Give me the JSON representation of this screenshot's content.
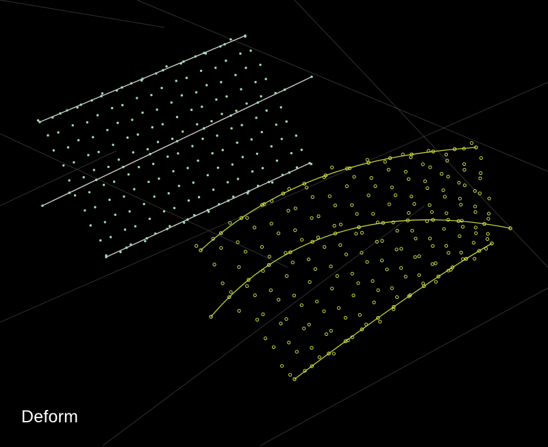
{
  "caption": "Deform",
  "colors": {
    "background": "#000000",
    "grid": "#5a5a5a",
    "source_curve": "#cfcfcf",
    "source_point": "#9fe0b0",
    "deformed_curve": "#c7d63a",
    "deformed_point": "#d9e34a"
  }
}
